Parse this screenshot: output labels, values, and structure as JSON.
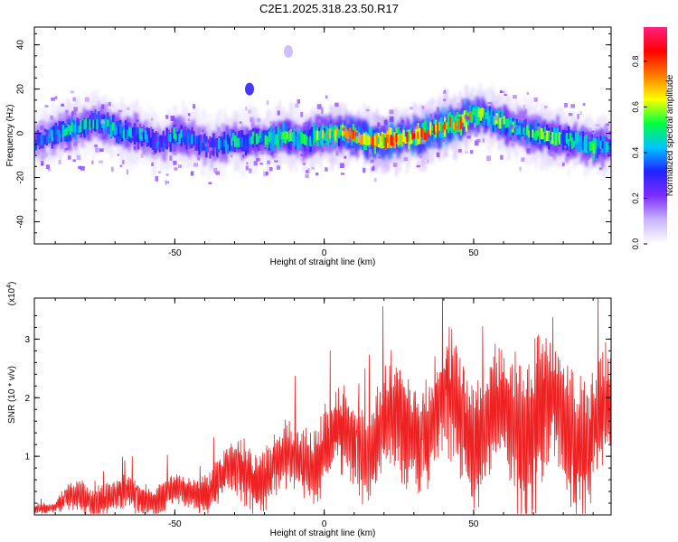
{
  "figure_title": "C2E1.2025.318.23.50.R17",
  "chart_data": [
    {
      "type": "heatmap",
      "title": "",
      "xlabel": "Height of straight line (km)",
      "ylabel": "Frequency (Hz)",
      "xlim": [
        -97,
        96
      ],
      "ylim": [
        -50,
        48
      ],
      "x_ticks": [
        -50,
        0,
        50
      ],
      "x_tick_labels": [
        "-50",
        "0",
        "50"
      ],
      "y_ticks": [
        -40,
        -20,
        0,
        20,
        40
      ],
      "y_tick_labels": [
        "-40",
        "-20",
        "0",
        "20",
        "40"
      ],
      "ridge": {
        "x": [
          -97,
          -90,
          -82,
          -76,
          -70,
          -64,
          -58,
          -54,
          -50,
          -46,
          -42,
          -38,
          -34,
          -30,
          -26,
          -22,
          -18,
          -14,
          -10,
          -6,
          -2,
          2,
          6,
          10,
          14,
          18,
          22,
          26,
          30,
          34,
          38,
          42,
          46,
          50,
          54,
          58,
          62,
          66,
          70,
          74,
          78,
          82,
          86,
          90,
          96
        ],
        "frequency": [
          -4,
          0,
          3,
          5,
          2,
          0,
          -3,
          -5,
          -1,
          -2,
          -4,
          -6,
          -5,
          -3,
          -4,
          -2,
          -3,
          -1,
          -2,
          -4,
          0,
          -1,
          0,
          -1,
          -2,
          -4,
          -3,
          -2,
          -1,
          0,
          2,
          4,
          5,
          9,
          8,
          6,
          3,
          2,
          0,
          -1,
          -2,
          -3,
          -4,
          -6,
          -5
        ],
        "amplitude": [
          0.35,
          0.45,
          0.5,
          0.45,
          0.5,
          0.45,
          0.4,
          0.35,
          0.5,
          0.45,
          0.4,
          0.35,
          0.45,
          0.5,
          0.45,
          0.5,
          0.55,
          0.6,
          0.55,
          0.5,
          0.6,
          0.65,
          0.7,
          0.75,
          0.7,
          0.8,
          0.85,
          0.8,
          0.85,
          0.8,
          0.75,
          0.8,
          0.85,
          0.7,
          0.55,
          0.6,
          0.55,
          0.5,
          0.55,
          0.6,
          0.55,
          0.5,
          0.55,
          0.6,
          0.45
        ]
      },
      "features": [
        {
          "x": -25,
          "frequency": 20,
          "amplitude": 0.3
        },
        {
          "x": -12,
          "frequency": 37,
          "amplitude": 0.1
        }
      ],
      "colorbar": {
        "label": "Normalized spectral amplitude",
        "range": [
          0,
          0.95
        ],
        "ticks": [
          "0.0",
          "0.2",
          "0.4",
          "0.6",
          "0.8"
        ],
        "colors": [
          "#ffffff",
          "#c8b4ff",
          "#7e2cff",
          "#2222ff",
          "#00c4ff",
          "#00ff40",
          "#ffff00",
          "#ff7a00",
          "#ff0000",
          "#ff2080"
        ]
      }
    },
    {
      "type": "line",
      "title": "",
      "xlabel": "Height of straight line (km)",
      "ylabel": "SNR (10 * v/v)",
      "scale_label": "(x10",
      "scale_exponent": "4",
      "scale_suffix": ")",
      "xlim": [
        -97,
        96
      ],
      "ylim": [
        0,
        3.7
      ],
      "x_ticks": [
        -50,
        0,
        50
      ],
      "x_tick_labels": [
        "-50",
        "0",
        "50"
      ],
      "y_ticks": [
        1,
        2,
        3
      ],
      "y_tick_labels": [
        "1",
        "2",
        "3"
      ],
      "series": [
        {
          "name": "SNR",
          "color": "#ee2222",
          "envelope_x": [
            -97,
            -90,
            -85,
            -80,
            -75,
            -70,
            -65,
            -60,
            -55,
            -50,
            -45,
            -40,
            -35,
            -30,
            -25,
            -20,
            -15,
            -10,
            -5,
            0,
            5,
            10,
            15,
            20,
            25,
            30,
            35,
            40,
            45,
            50,
            55,
            60,
            65,
            70,
            75,
            80,
            85,
            90,
            96
          ],
          "envelope_mean": [
            0.12,
            0.15,
            0.25,
            0.3,
            0.3,
            0.28,
            0.3,
            0.32,
            0.3,
            0.35,
            0.38,
            0.45,
            0.55,
            0.7,
            0.75,
            0.7,
            0.8,
            0.95,
            1.0,
            1.1,
            1.2,
            1.3,
            1.2,
            1.4,
            1.5,
            1.6,
            1.5,
            1.7,
            1.8,
            1.6,
            1.5,
            1.5,
            1.6,
            1.9,
            1.7,
            1.5,
            1.6,
            1.4,
            1.5
          ],
          "envelope_spread": [
            0.08,
            0.12,
            0.25,
            0.3,
            0.3,
            0.3,
            0.3,
            0.3,
            0.3,
            0.3,
            0.3,
            0.35,
            0.4,
            0.5,
            0.55,
            0.55,
            0.6,
            0.6,
            0.65,
            0.7,
            0.8,
            0.9,
            0.85,
            0.9,
            1.0,
            1.05,
            1.0,
            1.1,
            1.2,
            1.1,
            1.05,
            1.15,
            1.3,
            1.6,
            1.3,
            1.2,
            1.25,
            1.1,
            1.0
          ]
        }
      ]
    }
  ]
}
